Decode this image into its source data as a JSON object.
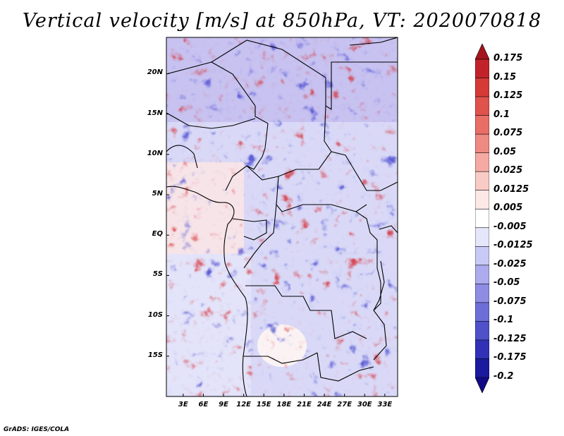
{
  "title": "Vertical velocity [m/s] at 850hPa, VT: 2020070818",
  "credit": "GrADS: IGES/COLA",
  "map": {
    "lat_labels": [
      "20N",
      "15N",
      "10N",
      "5N",
      "EQ",
      "5S",
      "10S",
      "15S"
    ],
    "lon_labels": [
      "3E",
      "6E",
      "9E",
      "12E",
      "15E",
      "18E",
      "21E",
      "24E",
      "27E",
      "30E",
      "33E"
    ],
    "lat_values": [
      20,
      15,
      10,
      5,
      0,
      -5,
      -10,
      -15
    ],
    "lon_values": [
      3,
      6,
      9,
      12,
      15,
      18,
      21,
      24,
      27,
      30,
      33
    ],
    "lon_range": [
      0.5,
      34.9
    ],
    "lat_range": [
      -20.0,
      24.5
    ]
  },
  "colorbar": {
    "labels": [
      "0.175",
      "0.15",
      "0.125",
      "0.1",
      "0.075",
      "0.05",
      "0.025",
      "0.0125",
      "0.005",
      "-0.005",
      "-0.0125",
      "-0.025",
      "-0.05",
      "-0.075",
      "-0.1",
      "-0.125",
      "-0.175",
      "-0.2"
    ],
    "colors": [
      "#a5141e",
      "#c2232a",
      "#d53a36",
      "#e0524c",
      "#e86e66",
      "#ee8a82",
      "#f4aaa3",
      "#f9cbc5",
      "#fde8e5",
      "#ffffff",
      "#e6e6fb",
      "#c9c9f5",
      "#ababee",
      "#8d8de4",
      "#6e6ed9",
      "#5050cb",
      "#3131b8",
      "#1a1a9e",
      "#120a85"
    ]
  }
}
